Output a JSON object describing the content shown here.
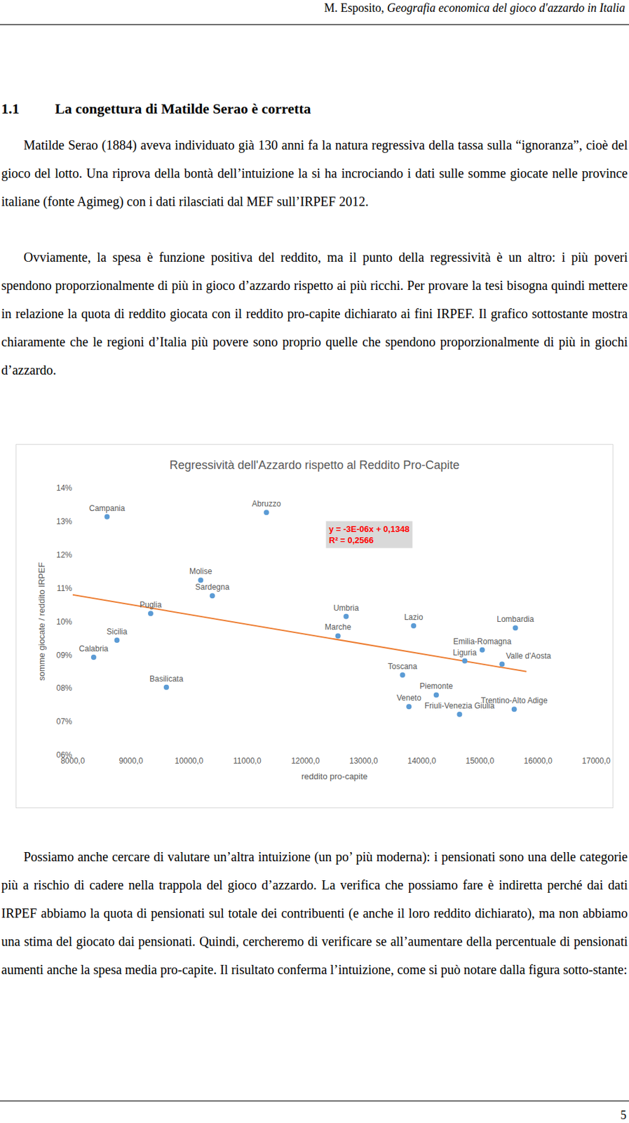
{
  "header": {
    "author": "M. Esposito,",
    "title": "Geografia economica del gioco d'azzardo in Italia"
  },
  "section": {
    "number": "1.1",
    "title": "La congettura di Matilde Serao è corretta"
  },
  "paragraphs": [
    "Matilde Serao (1884) aveva individuato già 130 anni fa la natura regressiva della tassa sulla “ignoranza”, cioè del gioco del lotto. Una riprova della bontà dell’intuizione la si ha incrociando i dati sulle somme giocate nelle province italiane (fonte Agimeg) con i dati rilasciati dal MEF sull’IRPEF 2012.",
    "Ovviamente, la spesa è funzione positiva del reddito, ma il punto della regressività è un altro: i più poveri spendono proporzionalmente di più in gioco d’azzardo rispetto ai più ricchi. Per provare la tesi bisogna quindi mettere in relazione la quota di reddito giocata con il reddito pro-capite dichiarato ai fini IRPEF. Il grafico sottostante mostra chiaramente che le regioni d’Italia più povere sono proprio quelle che spendono proporzionalmente di più in giochi d’azzardo.",
    "Possiamo anche cercare di valutare un’altra intuizione (un po’ più moderna): i pensionati sono una delle categorie più a rischio di cadere nella trappola del gioco d’azzardo. La verifica che possiamo fare è indiretta perché dai dati IRPEF abbiamo la quota di pensionati sul totale dei contribuenti (e anche il loro reddito dichiarato), ma non abbiamo una stima del giocato dai pensionati. Quindi, cercheremo di verificare se all’aumentare della percentuale di pensionati aumenti anche la spesa media pro-capite. Il risultato conferma l’intuizione, come si può notare dalla figura sotto-stante:"
  ],
  "chart_data": {
    "type": "scatter",
    "title": "Regressività dell'Azzardo rispetto al Reddito Pro-Capite",
    "x_label": "reddito pro-capite",
    "y_label": "somme giocate / reddito IRPEF",
    "color": "#5b9bd5",
    "marker": "circle",
    "grid": false,
    "points": [
      {
        "label": "Campania",
        "x": 8590,
        "y": 13.14
      },
      {
        "label": "Abruzzo",
        "x": 11330,
        "y": 13.27
      },
      {
        "label": "Molise",
        "x": 10200,
        "y": 11.24
      },
      {
        "label": "Sardegna",
        "x": 10400,
        "y": 10.77
      },
      {
        "label": "Puglia",
        "x": 9340,
        "y": 10.24
      },
      {
        "label": "Sicilia",
        "x": 8760,
        "y": 9.44
      },
      {
        "label": "Calabria",
        "x": 8360,
        "y": 8.93
      },
      {
        "label": "Basilicata",
        "x": 9610,
        "y": 8.03
      },
      {
        "label": "Umbria",
        "x": 12700,
        "y": 10.15
      },
      {
        "label": "Marche",
        "x": 12560,
        "y": 9.57
      },
      {
        "label": "Lazio",
        "x": 13860,
        "y": 9.87
      },
      {
        "label": "Lombardia",
        "x": 15610,
        "y": 9.81
      },
      {
        "label": "Emilia-Romagna",
        "x": 15040,
        "y": 9.15
      },
      {
        "label": "Liguria",
        "x": 14740,
        "y": 8.82
      },
      {
        "label": "Valle d'Aosta",
        "x": 15380,
        "y": 8.72
      },
      {
        "label": "Toscana",
        "x": 13670,
        "y": 8.4
      },
      {
        "label": "Piemonte",
        "x": 14250,
        "y": 7.8
      },
      {
        "label": "Veneto",
        "x": 13780,
        "y": 7.45
      },
      {
        "label": "Friuli-Venezia Giulia",
        "x": 14650,
        "y": 7.22
      },
      {
        "label": "Trentino-Alto Adige",
        "x": 15590,
        "y": 7.37
      }
    ],
    "trendline": {
      "type": "line",
      "line_style": "solid",
      "color": "#ed7d31",
      "x": [
        8000,
        15800
      ],
      "values": [
        10.8,
        8.5
      ]
    },
    "annotations": [
      "y = -3E-06x + 0,1348",
      "R² = 0,2566"
    ],
    "xlim": [
      8000,
      17000
    ],
    "xticks": [
      {
        "value": 8000,
        "label": "8000,0"
      },
      {
        "value": 9000,
        "label": "9000,0"
      },
      {
        "value": 10000,
        "label": "10000,0"
      },
      {
        "value": 11000,
        "label": "11000,0"
      },
      {
        "value": 12000,
        "label": "12000,0"
      },
      {
        "value": 13000,
        "label": "13000,0"
      },
      {
        "value": 14000,
        "label": "14000,0"
      },
      {
        "value": 15000,
        "label": "15000,0"
      },
      {
        "value": 16000,
        "label": "16000,0"
      },
      {
        "value": 17000,
        "label": "17000,0"
      }
    ],
    "ylim": [
      6,
      14
    ],
    "yticks": [
      {
        "value": 6,
        "label": "06%"
      },
      {
        "value": 7,
        "label": "07%"
      },
      {
        "value": 8,
        "label": "08%"
      },
      {
        "value": 9,
        "label": "09%"
      },
      {
        "value": 10,
        "label": "10%"
      },
      {
        "value": 11,
        "label": "11%"
      },
      {
        "value": 12,
        "label": "12%"
      },
      {
        "value": 13,
        "label": "13%"
      },
      {
        "value": 14,
        "label": "14%"
      }
    ]
  },
  "page_number": "5"
}
